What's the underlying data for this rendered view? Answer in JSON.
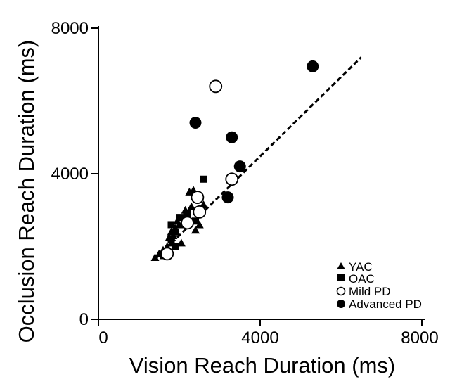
{
  "chart_data": {
    "type": "scatter",
    "xlabel": "Vision Reach Duration (ms)",
    "ylabel": "Occlusion Reach Duration (ms)",
    "xlim": [
      0,
      8000
    ],
    "ylim": [
      0,
      8000
    ],
    "x_ticks": [
      "0",
      "4000",
      "8000"
    ],
    "y_ticks": [
      "0",
      "4000",
      "8000"
    ],
    "grid": false,
    "legend_position": "bottom-right",
    "series": [
      {
        "name": "YAC",
        "marker": "triangle",
        "color": "#000000",
        "points": [
          [
            1400,
            1700
          ],
          [
            1500,
            1800
          ],
          [
            1600,
            1900
          ],
          [
            1700,
            2000
          ],
          [
            1800,
            2100
          ],
          [
            1750,
            2250
          ],
          [
            1850,
            2300
          ],
          [
            1800,
            2400
          ],
          [
            1900,
            2500
          ],
          [
            2000,
            2600
          ],
          [
            1950,
            2700
          ],
          [
            2100,
            2800
          ],
          [
            2200,
            2900
          ],
          [
            2150,
            3000
          ],
          [
            2300,
            3100
          ],
          [
            2400,
            2450
          ],
          [
            2500,
            2600
          ],
          [
            2600,
            3150
          ],
          [
            2250,
            3500
          ],
          [
            2350,
            3550
          ],
          [
            2050,
            2100
          ]
        ]
      },
      {
        "name": "OAC",
        "marker": "square",
        "color": "#000000",
        "points": [
          [
            1600,
            1750
          ],
          [
            1800,
            2200
          ],
          [
            1900,
            2400
          ],
          [
            2000,
            2800
          ],
          [
            1800,
            2600
          ],
          [
            2200,
            2900
          ],
          [
            2400,
            2700
          ],
          [
            2500,
            2900
          ],
          [
            2600,
            3850
          ],
          [
            1900,
            2000
          ]
        ]
      },
      {
        "name": "Mild PD",
        "marker": "circle-open",
        "color": "#000000",
        "points": [
          [
            1700,
            1800
          ],
          [
            2200,
            2650
          ],
          [
            2500,
            2950
          ],
          [
            2450,
            3350
          ],
          [
            3300,
            3850
          ],
          [
            2900,
            6400
          ]
        ]
      },
      {
        "name": "Advanced PD",
        "marker": "circle-filled",
        "color": "#000000",
        "points": [
          [
            2400,
            5400
          ],
          [
            3300,
            5000
          ],
          [
            3500,
            4200
          ],
          [
            3200,
            3350
          ],
          [
            5300,
            6950
          ]
        ]
      }
    ],
    "trend_line": {
      "style": "dashed",
      "from": [
        1400,
        1650
      ],
      "to": [
        6500,
        7200
      ]
    }
  }
}
